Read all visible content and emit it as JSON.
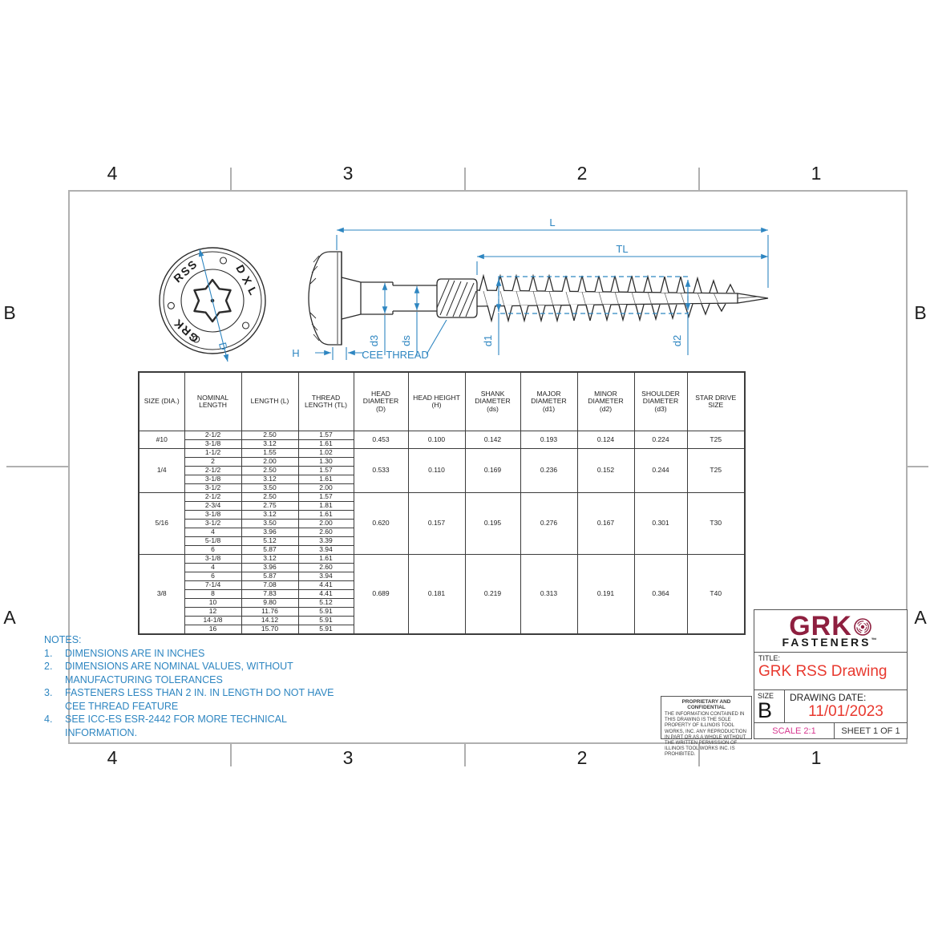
{
  "colors": {
    "accent_blue": "#2e86c1",
    "logo_maroon": "#8e1f3f",
    "title_red": "#e8392f",
    "scale_magenta": "#d6368f",
    "drawing_line": "#2b2b2b",
    "frame_gray": "#b0b0b0"
  },
  "zones": {
    "top": [
      "4",
      "3",
      "2",
      "1"
    ],
    "bottom": [
      "4",
      "3",
      "2",
      "1"
    ],
    "left": [
      "B",
      "A"
    ],
    "right": [
      "B",
      "A"
    ]
  },
  "drawing": {
    "head_view": {
      "engraving_top": "RSS",
      "engraving_right": "DXL",
      "engraving_bottom": "GRK",
      "diameter_label": "D"
    },
    "side_view": {
      "length_label": "L",
      "thread_length_label": "TL",
      "head_height_label": "H",
      "shoulder_dia_label": "d3",
      "shank_dia_label": "ds",
      "major_dia_label": "d1",
      "minor_dia_label": "d2",
      "callout": "CEE THREAD"
    }
  },
  "table": {
    "headers": [
      "SIZE (DIA.)",
      "NOMINAL\nLENGTH",
      "LENGTH (L)",
      "THREAD\nLENGTH (TL)",
      "HEAD\nDIAMETER\n(D)",
      "HEAD HEIGHT\n(H)",
      "SHANK\nDIAMETER\n(ds)",
      "MAJOR\nDIAMETER\n(d1)",
      "MINOR\nDIAMETER\n(d2)",
      "SHOULDER\nDIAMETER\n(d3)",
      "STAR DRIVE\nSIZE"
    ],
    "groups": [
      {
        "size": "#10",
        "rows": [
          [
            "2-1/2",
            "2.50",
            "1.57"
          ],
          [
            "3-1/8",
            "3.12",
            "1.61"
          ]
        ],
        "specs": [
          "0.453",
          "0.100",
          "0.142",
          "0.193",
          "0.124",
          "0.224",
          "T25"
        ]
      },
      {
        "size": "1/4",
        "rows": [
          [
            "1-1/2",
            "1.55",
            "1.02"
          ],
          [
            "2",
            "2.00",
            "1.30"
          ],
          [
            "2-1/2",
            "2.50",
            "1.57"
          ],
          [
            "3-1/8",
            "3.12",
            "1.61"
          ],
          [
            "3-1/2",
            "3.50",
            "2.00"
          ]
        ],
        "specs": [
          "0.533",
          "0.110",
          "0.169",
          "0.236",
          "0.152",
          "0.244",
          "T25"
        ]
      },
      {
        "size": "5/16",
        "rows": [
          [
            "2-1/2",
            "2.50",
            "1.57"
          ],
          [
            "2-3/4",
            "2.75",
            "1.81"
          ],
          [
            "3-1/8",
            "3.12",
            "1.61"
          ],
          [
            "3-1/2",
            "3.50",
            "2.00"
          ],
          [
            "4",
            "3.96",
            "2.60"
          ],
          [
            "5-1/8",
            "5.12",
            "3.39"
          ],
          [
            "6",
            "5.87",
            "3.94"
          ]
        ],
        "specs": [
          "0.620",
          "0.157",
          "0.195",
          "0.276",
          "0.167",
          "0.301",
          "T30"
        ]
      },
      {
        "size": "3/8",
        "rows": [
          [
            "3-1/8",
            "3.12",
            "1.61"
          ],
          [
            "4",
            "3.96",
            "2.60"
          ],
          [
            "6",
            "5.87",
            "3.94"
          ],
          [
            "7-1/4",
            "7.08",
            "4.41"
          ],
          [
            "8",
            "7.83",
            "4.41"
          ],
          [
            "10",
            "9.80",
            "5.12"
          ],
          [
            "12",
            "11.76",
            "5.91"
          ],
          [
            "14-1/8",
            "14.12",
            "5.91"
          ],
          [
            "16",
            "15.70",
            "5.91"
          ]
        ],
        "specs": [
          "0.689",
          "0.181",
          "0.219",
          "0.313",
          "0.191",
          "0.364",
          "T40"
        ]
      }
    ]
  },
  "notes": {
    "title": "NOTES:",
    "items": [
      "DIMENSIONS ARE IN INCHES",
      "DIMENSIONS ARE NOMINAL VALUES, WITHOUT MANUFACTURING TOLERANCES",
      "FASTENERS LESS THAN 2 IN. IN LENGTH DO NOT HAVE CEE THREAD FEATURE",
      "SEE ICC-ES ESR-2442 FOR MORE TECHNICAL INFORMATION."
    ]
  },
  "title_block": {
    "logo": {
      "brand": "GRK",
      "sub": "FASTENERS",
      "tm": "™"
    },
    "title_label": "TITLE:",
    "title": "GRK RSS Drawing",
    "size_label": "SIZE",
    "size": "B",
    "date_label": "DRAWING DATE:",
    "date": "11/01/2023",
    "scale": "SCALE 2:1",
    "sheet": "SHEET 1 OF 1",
    "proprietary_title": "PROPRIETARY AND CONFIDENTIAL",
    "proprietary_body": "THE INFORMATION CONTAINED IN THIS DRAWING IS THE SOLE PROPERTY OF ILLINOIS TOOL WORKS, INC.  ANY REPRODUCTION IN PART OR AS A WHOLE WITHOUT THE WRITTEN PERMISSION OF ILLINOIS TOOL WORKS INC. IS PROHIBITED."
  }
}
